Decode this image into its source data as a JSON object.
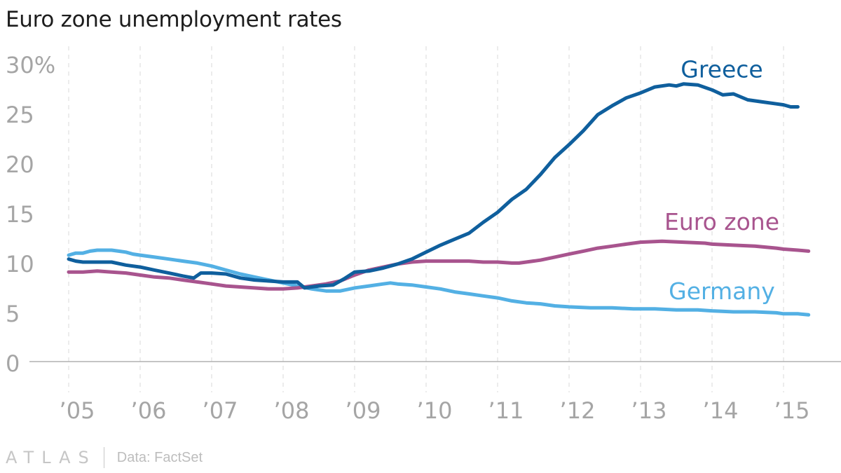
{
  "title": "Euro zone unemployment rates",
  "footer": {
    "brand": "ATLAS",
    "source": "Data: FactSet"
  },
  "colors": {
    "greece": "#0f5f9d",
    "eurozone": "#a8548e",
    "germany": "#53b0e4",
    "grid": "#e6e6e6",
    "axis": "#b0b0b0",
    "tick_text": "#a5a5a5"
  },
  "chart_data": {
    "type": "line",
    "title": "Euro zone unemployment rates",
    "xlabel": "",
    "ylabel": "",
    "xlim": [
      2005.0,
      2015.4
    ],
    "ylim": [
      0,
      31
    ],
    "y_ticks": [
      {
        "value": 0,
        "label": "0"
      },
      {
        "value": 5,
        "label": "5"
      },
      {
        "value": 10,
        "label": "10"
      },
      {
        "value": 15,
        "label": "15"
      },
      {
        "value": 20,
        "label": "20"
      },
      {
        "value": 25,
        "label": "25"
      },
      {
        "value": 30,
        "label": "30%"
      }
    ],
    "x_ticks": [
      {
        "value": 2005,
        "label": "’05"
      },
      {
        "value": 2006,
        "label": "’06"
      },
      {
        "value": 2007,
        "label": "’07"
      },
      {
        "value": 2008,
        "label": "’08"
      },
      {
        "value": 2009,
        "label": "’09"
      },
      {
        "value": 2010,
        "label": "’10"
      },
      {
        "value": 2011,
        "label": "’11"
      },
      {
        "value": 2012,
        "label": "’12"
      },
      {
        "value": 2013,
        "label": "’13"
      },
      {
        "value": 2014,
        "label": "’14"
      },
      {
        "value": 2015,
        "label": "’15"
      }
    ],
    "grid": "vertical",
    "series": [
      {
        "name": "Germany",
        "key": "germany",
        "points": [
          [
            2005.0,
            10.7
          ],
          [
            2005.1,
            10.9
          ],
          [
            2005.2,
            10.9
          ],
          [
            2005.3,
            11.1
          ],
          [
            2005.4,
            11.2
          ],
          [
            2005.5,
            11.2
          ],
          [
            2005.6,
            11.2
          ],
          [
            2005.7,
            11.1
          ],
          [
            2005.8,
            11.0
          ],
          [
            2005.9,
            10.8
          ],
          [
            2006.0,
            10.7
          ],
          [
            2006.2,
            10.5
          ],
          [
            2006.4,
            10.3
          ],
          [
            2006.6,
            10.1
          ],
          [
            2006.8,
            9.9
          ],
          [
            2007.0,
            9.6
          ],
          [
            2007.2,
            9.2
          ],
          [
            2007.4,
            8.8
          ],
          [
            2007.6,
            8.5
          ],
          [
            2007.8,
            8.2
          ],
          [
            2008.0,
            7.9
          ],
          [
            2008.2,
            7.6
          ],
          [
            2008.4,
            7.3
          ],
          [
            2008.6,
            7.1
          ],
          [
            2008.8,
            7.1
          ],
          [
            2009.0,
            7.4
          ],
          [
            2009.2,
            7.6
          ],
          [
            2009.4,
            7.8
          ],
          [
            2009.5,
            7.9
          ],
          [
            2009.6,
            7.8
          ],
          [
            2009.8,
            7.7
          ],
          [
            2010.0,
            7.5
          ],
          [
            2010.2,
            7.3
          ],
          [
            2010.4,
            7.0
          ],
          [
            2010.6,
            6.8
          ],
          [
            2010.8,
            6.6
          ],
          [
            2011.0,
            6.4
          ],
          [
            2011.2,
            6.1
          ],
          [
            2011.4,
            5.9
          ],
          [
            2011.6,
            5.8
          ],
          [
            2011.8,
            5.6
          ],
          [
            2012.0,
            5.5
          ],
          [
            2012.3,
            5.4
          ],
          [
            2012.6,
            5.4
          ],
          [
            2012.9,
            5.3
          ],
          [
            2013.2,
            5.3
          ],
          [
            2013.5,
            5.2
          ],
          [
            2013.8,
            5.2
          ],
          [
            2014.0,
            5.1
          ],
          [
            2014.3,
            5.0
          ],
          [
            2014.6,
            5.0
          ],
          [
            2014.9,
            4.9
          ],
          [
            2015.0,
            4.8
          ],
          [
            2015.2,
            4.8
          ],
          [
            2015.35,
            4.7
          ]
        ]
      },
      {
        "name": "Euro zone",
        "key": "eurozone",
        "points": [
          [
            2005.0,
            9.0
          ],
          [
            2005.2,
            9.0
          ],
          [
            2005.4,
            9.1
          ],
          [
            2005.6,
            9.0
          ],
          [
            2005.8,
            8.9
          ],
          [
            2006.0,
            8.7
          ],
          [
            2006.2,
            8.5
          ],
          [
            2006.4,
            8.4
          ],
          [
            2006.6,
            8.2
          ],
          [
            2006.8,
            8.0
          ],
          [
            2007.0,
            7.8
          ],
          [
            2007.2,
            7.6
          ],
          [
            2007.4,
            7.5
          ],
          [
            2007.6,
            7.4
          ],
          [
            2007.8,
            7.3
          ],
          [
            2008.0,
            7.3
          ],
          [
            2008.2,
            7.4
          ],
          [
            2008.4,
            7.6
          ],
          [
            2008.6,
            7.8
          ],
          [
            2008.8,
            8.1
          ],
          [
            2009.0,
            8.7
          ],
          [
            2009.2,
            9.2
          ],
          [
            2009.4,
            9.5
          ],
          [
            2009.6,
            9.8
          ],
          [
            2009.8,
            10.0
          ],
          [
            2010.0,
            10.1
          ],
          [
            2010.2,
            10.1
          ],
          [
            2010.4,
            10.1
          ],
          [
            2010.6,
            10.1
          ],
          [
            2010.8,
            10.0
          ],
          [
            2011.0,
            10.0
          ],
          [
            2011.2,
            9.9
          ],
          [
            2011.3,
            9.9
          ],
          [
            2011.4,
            10.0
          ],
          [
            2011.6,
            10.2
          ],
          [
            2011.8,
            10.5
          ],
          [
            2012.0,
            10.8
          ],
          [
            2012.2,
            11.1
          ],
          [
            2012.4,
            11.4
          ],
          [
            2012.6,
            11.6
          ],
          [
            2012.8,
            11.8
          ],
          [
            2013.0,
            12.0
          ],
          [
            2013.3,
            12.1
          ],
          [
            2013.6,
            12.0
          ],
          [
            2013.9,
            11.9
          ],
          [
            2014.0,
            11.8
          ],
          [
            2014.3,
            11.7
          ],
          [
            2014.6,
            11.6
          ],
          [
            2014.9,
            11.4
          ],
          [
            2015.0,
            11.3
          ],
          [
            2015.2,
            11.2
          ],
          [
            2015.35,
            11.1
          ]
        ]
      },
      {
        "name": "Greece",
        "key": "greece",
        "points": [
          [
            2005.0,
            10.3
          ],
          [
            2005.1,
            10.1
          ],
          [
            2005.2,
            10.0
          ],
          [
            2005.3,
            10.0
          ],
          [
            2005.4,
            10.0
          ],
          [
            2005.6,
            10.0
          ],
          [
            2005.8,
            9.7
          ],
          [
            2006.0,
            9.5
          ],
          [
            2006.2,
            9.2
          ],
          [
            2006.4,
            8.9
          ],
          [
            2006.6,
            8.6
          ],
          [
            2006.75,
            8.4
          ],
          [
            2006.85,
            8.9
          ],
          [
            2007.0,
            8.9
          ],
          [
            2007.2,
            8.8
          ],
          [
            2007.4,
            8.4
          ],
          [
            2007.6,
            8.2
          ],
          [
            2007.8,
            8.1
          ],
          [
            2008.0,
            8.0
          ],
          [
            2008.2,
            8.0
          ],
          [
            2008.3,
            7.4
          ],
          [
            2008.5,
            7.6
          ],
          [
            2008.7,
            7.7
          ],
          [
            2008.85,
            8.3
          ],
          [
            2009.0,
            9.0
          ],
          [
            2009.2,
            9.1
          ],
          [
            2009.4,
            9.4
          ],
          [
            2009.6,
            9.8
          ],
          [
            2009.8,
            10.3
          ],
          [
            2010.0,
            11.0
          ],
          [
            2010.2,
            11.7
          ],
          [
            2010.4,
            12.3
          ],
          [
            2010.6,
            12.9
          ],
          [
            2010.8,
            14.0
          ],
          [
            2011.0,
            15.0
          ],
          [
            2011.2,
            16.3
          ],
          [
            2011.4,
            17.3
          ],
          [
            2011.6,
            18.8
          ],
          [
            2011.8,
            20.5
          ],
          [
            2012.0,
            21.8
          ],
          [
            2012.2,
            23.2
          ],
          [
            2012.4,
            24.8
          ],
          [
            2012.6,
            25.7
          ],
          [
            2012.8,
            26.5
          ],
          [
            2013.0,
            27.0
          ],
          [
            2013.2,
            27.6
          ],
          [
            2013.4,
            27.8
          ],
          [
            2013.5,
            27.7
          ],
          [
            2013.6,
            27.9
          ],
          [
            2013.8,
            27.8
          ],
          [
            2014.0,
            27.3
          ],
          [
            2014.15,
            26.8
          ],
          [
            2014.3,
            26.9
          ],
          [
            2014.5,
            26.3
          ],
          [
            2014.7,
            26.1
          ],
          [
            2014.9,
            25.9
          ],
          [
            2015.0,
            25.8
          ],
          [
            2015.1,
            25.6
          ],
          [
            2015.2,
            25.6
          ]
        ]
      }
    ],
    "annotations": [
      {
        "series": "greece",
        "text": "Greece",
        "x": 2014.0,
        "y": 29.4
      },
      {
        "series": "eurozone",
        "text": "Euro zone",
        "x": 2014.0,
        "y": 14.1
      },
      {
        "series": "germany",
        "text": "Germany",
        "x": 2014.0,
        "y": 7.1
      }
    ]
  }
}
